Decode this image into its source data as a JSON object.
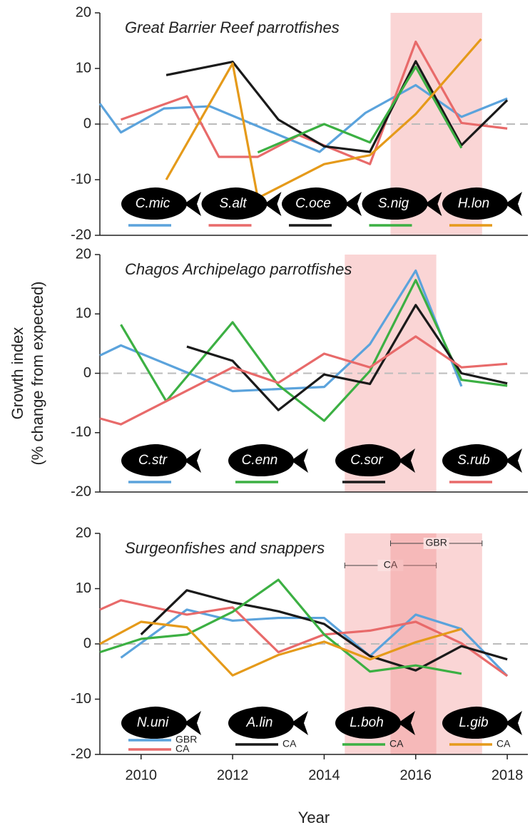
{
  "chart_data": [
    {
      "type": "line",
      "title": "Great Barrier Reef parrotfishes",
      "xlim": [
        2009.1,
        2018.45
      ],
      "ylim": [
        -20,
        20
      ],
      "yticks": [
        20,
        10,
        0,
        -10,
        -20
      ],
      "hline": 0,
      "shaded": [
        {
          "range": [
            2015.45,
            2017.45
          ],
          "color": "#f08080"
        }
      ],
      "groups": [
        {
          "label": "C.mic",
          "series": [
            {
              "color": "#5ba3dc",
              "x": [
                2009.1,
                2009.56,
                2010.5,
                2011.5,
                2013.9,
                2014.9,
                2016,
                2017,
                2018
              ],
              "values": [
                3.7,
                -1.5,
                2.8,
                3.2,
                -5,
                2,
                7,
                1.3,
                4.6
              ]
            }
          ]
        },
        {
          "label": "S.alt",
          "series": [
            {
              "color": "#e86a6a",
              "x": [
                2009.56,
                2011,
                2011.7,
                2012.55,
                2013.45,
                2015,
                2016,
                2017,
                2018
              ],
              "values": [
                0.8,
                5,
                -5.9,
                -5.9,
                -2,
                -7.2,
                14.8,
                0.2,
                -0.8
              ]
            }
          ]
        },
        {
          "label": "C.oce",
          "series": [
            {
              "color": "#1a1a1a",
              "x": [
                2010.55,
                2012,
                2013,
                2014,
                2015,
                2016,
                2017,
                2018
              ],
              "values": [
                8.8,
                11.2,
                0.8,
                -4,
                -5,
                11.3,
                -3.8,
                4.3
              ]
            }
          ]
        },
        {
          "label": "S.nig",
          "series": [
            {
              "color": "#3cb043",
              "x": [
                2012.55,
                2014,
                2015,
                2016,
                2017
              ],
              "values": [
                -5.1,
                0,
                -3.3,
                10.3,
                -4.3
              ]
            }
          ]
        },
        {
          "label": "H.lon",
          "series": [
            {
              "color": "#e59a1a",
              "x": [
                2010.55,
                2012,
                2012.55,
                2014,
                2015,
                2016,
                2017.43
              ],
              "values": [
                -10,
                10.9,
                -13.3,
                -7.2,
                -5.6,
                1.8,
                15.3
              ]
            }
          ]
        }
      ]
    },
    {
      "type": "line",
      "title": "Chagos Archipelago parrotfishes",
      "ylabel": [
        "Growth index",
        "(% change from expected)"
      ],
      "xlim": [
        2009.1,
        2018.45
      ],
      "ylim": [
        -20,
        20
      ],
      "yticks": [
        20,
        10,
        0,
        -10,
        -20
      ],
      "hline": 0,
      "shaded": [
        {
          "range": [
            2014.45,
            2016.45
          ],
          "color": "#f08080"
        }
      ],
      "groups": [
        {
          "label": "C.str",
          "series": [
            {
              "color": "#5ba3dc",
              "x": [
                2009.1,
                2009.56,
                2012,
                2014,
                2015,
                2016,
                2017
              ],
              "values": [
                3,
                4.7,
                -3,
                -2.3,
                4.9,
                17.3,
                -2.2
              ]
            }
          ]
        },
        {
          "label": "C.enn",
          "series": [
            {
              "color": "#3cb043",
              "x": [
                2009.56,
                2010.55,
                2012,
                2013,
                2014,
                2015,
                2016,
                2017,
                2018
              ],
              "values": [
                8.2,
                -4.7,
                8.6,
                -2,
                -8,
                0.4,
                15.7,
                -1.1,
                -2.1
              ]
            }
          ]
        },
        {
          "label": "C.sor",
          "series": [
            {
              "color": "#1a1a1a",
              "x": [
                2011,
                2012,
                2013,
                2014,
                2015,
                2016,
                2017,
                2018
              ],
              "values": [
                4.5,
                2.1,
                -6.2,
                -0.2,
                -1.8,
                11.5,
                0,
                -1.7
              ]
            }
          ]
        },
        {
          "label": "S.rub",
          "series": [
            {
              "color": "#e86a6a",
              "x": [
                2009.1,
                2009.56,
                2012,
                2013,
                2014,
                2015,
                2016,
                2017,
                2018
              ],
              "values": [
                -7.6,
                -8.6,
                1,
                -1.6,
                3.3,
                1,
                6.2,
                1,
                1.6
              ]
            }
          ]
        }
      ]
    },
    {
      "type": "line",
      "title": "Surgeonfishes and snappers",
      "xlabel": "Year",
      "xlim": [
        2009.1,
        2018.45
      ],
      "ylim": [
        -20,
        20
      ],
      "yticks": [
        20,
        10,
        0,
        -10,
        -20
      ],
      "hline": 0,
      "xticks": [
        2010,
        2012,
        2014,
        2016,
        2018
      ],
      "shaded": [
        {
          "label": "CA",
          "range": [
            2014.45,
            2016.45
          ],
          "color": "#f08080"
        },
        {
          "label": "GBR",
          "range": [
            2015.45,
            2017.45
          ],
          "color": "#f08080"
        }
      ],
      "groups": [
        {
          "label": "N.uni",
          "series": [
            {
              "name": "GBR",
              "color": "#5ba3dc",
              "x": [
                2009.56,
                2011,
                2012,
                2013,
                2014,
                2015,
                2016,
                2017,
                2018
              ],
              "values": [
                -2.5,
                6.2,
                4.2,
                4.7,
                4.7,
                -2.2,
                5.3,
                2.7,
                -5.8
              ]
            },
            {
              "name": "CA",
              "color": "#e86a6a",
              "x": [
                2009.1,
                2009.56,
                2011,
                2012,
                2013,
                2014,
                2015,
                2016,
                2017,
                2018
              ],
              "values": [
                6.2,
                7.9,
                5.3,
                6.6,
                -1.5,
                1.7,
                2.4,
                4,
                0.1,
                -5.8
              ]
            }
          ]
        },
        {
          "label": "A.lin",
          "series": [
            {
              "name": "CA",
              "color": "#1a1a1a",
              "x": [
                2010,
                2011,
                2012,
                2013,
                2014,
                2015,
                2016,
                2017,
                2018
              ],
              "values": [
                1.7,
                9.7,
                7.5,
                5.9,
                3.6,
                -2.2,
                -4.8,
                -0.4,
                -2.8
              ]
            }
          ]
        },
        {
          "label": "L.boh",
          "series": [
            {
              "name": "CA",
              "color": "#3cb043",
              "x": [
                2009.1,
                2010,
                2011,
                2012,
                2013,
                2014,
                2015,
                2016,
                2017
              ],
              "values": [
                -1.5,
                0.9,
                1.7,
                5.8,
                11.6,
                1.7,
                -5,
                -3.9,
                -5.4
              ]
            }
          ]
        },
        {
          "label": "L.gib",
          "series": [
            {
              "name": "CA",
              "color": "#e59a1a",
              "x": [
                2009.1,
                2010,
                2011,
                2012,
                2013,
                2014,
                2015,
                2016,
                2017
              ],
              "values": [
                0,
                4,
                3,
                -5.7,
                -2,
                0.4,
                -2.8,
                0.3,
                2.7
              ]
            }
          ]
        }
      ]
    }
  ]
}
